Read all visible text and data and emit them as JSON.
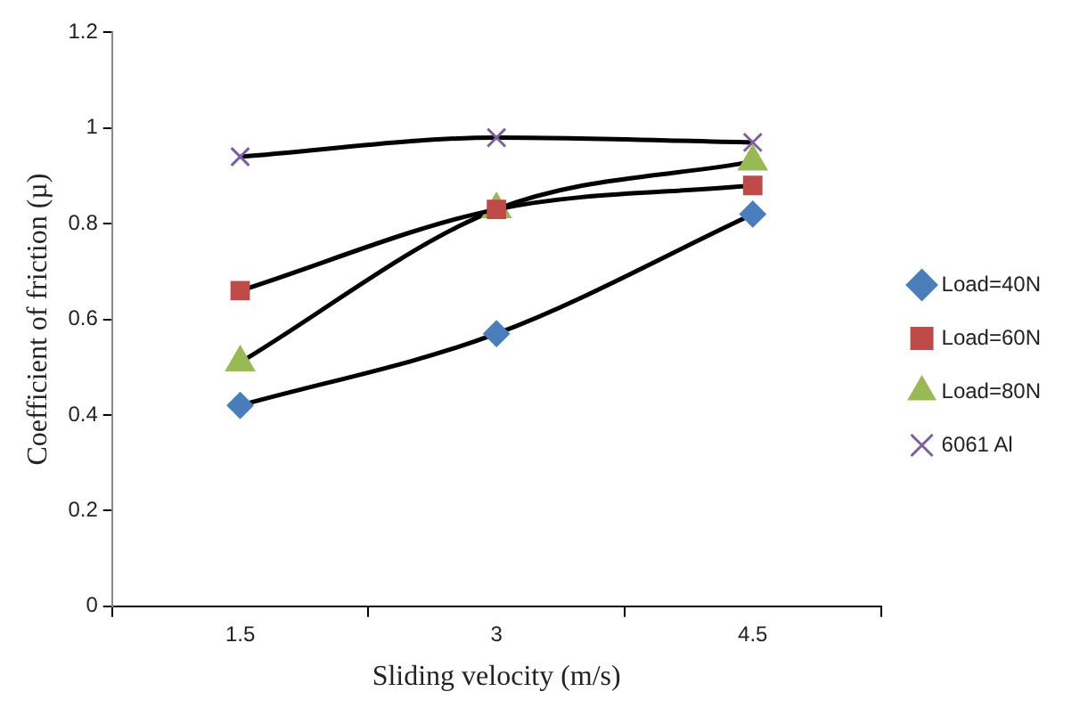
{
  "chart_data": {
    "type": "line",
    "xlabel": "Sliding velocity (m/s)",
    "ylabel": "Coefficient of friction (µ)",
    "categories": [
      "1.5",
      "3",
      "4.5"
    ],
    "series": [
      {
        "name": "Load=40N",
        "color": "#4a7ebb",
        "marker": "diamond",
        "values": [
          0.42,
          0.57,
          0.82
        ]
      },
      {
        "name": "Load=60N",
        "color": "#be4b48",
        "marker": "square",
        "values": [
          0.66,
          0.83,
          0.88
        ]
      },
      {
        "name": "Load=80N",
        "color": "#98b954",
        "marker": "triangle",
        "values": [
          0.51,
          0.83,
          0.93
        ]
      },
      {
        "name": "6061 Al",
        "color": "#7d60a0",
        "marker": "cross",
        "values": [
          0.94,
          0.98,
          0.97
        ]
      }
    ],
    "ylim": [
      0,
      1.2
    ],
    "yticks": [
      0,
      0.2,
      0.4,
      0.6,
      0.8,
      1,
      1.2
    ],
    "grid": false,
    "legend": "right"
  }
}
